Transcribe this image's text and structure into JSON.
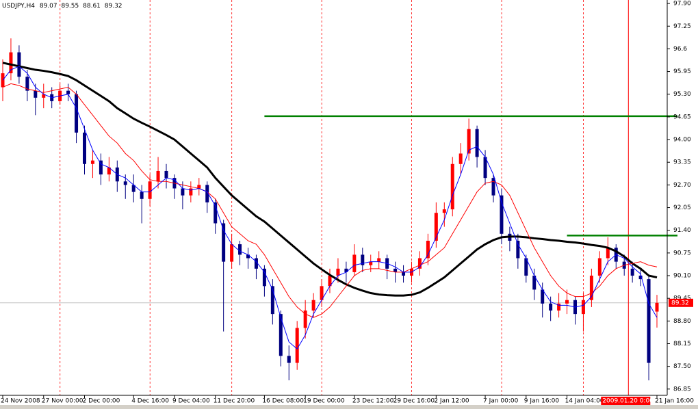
{
  "chart_data": {
    "type": "candlestick",
    "symbol": "USDJPY,H4",
    "bull_color": "#ff0000",
    "bear_color": "#000080",
    "categories": [
      "24 Nov 2008",
      null,
      null,
      null,
      null,
      "27 Nov 00:00",
      null,
      null,
      null,
      null,
      "2 Dec 00:00",
      null,
      null,
      null,
      null,
      null,
      "4 Dec 16:00",
      null,
      null,
      null,
      null,
      "9 Dec 04:00",
      null,
      null,
      null,
      null,
      "11 Dec 20:00",
      null,
      null,
      null,
      null,
      null,
      "16 Dec 08:00",
      null,
      null,
      null,
      null,
      "19 Dec 00:00",
      null,
      null,
      null,
      null,
      null,
      "23 Dec 12:00",
      null,
      null,
      null,
      null,
      "29 Dec 16:00",
      null,
      null,
      null,
      null,
      "2 Jan 12:00",
      null,
      null,
      null,
      null,
      null,
      "7 Jan 00:00",
      null,
      null,
      null,
      null,
      "9 Jan 16:00",
      null,
      null,
      null,
      null,
      "14 Jan 04:00",
      null,
      null,
      null,
      null,
      "2009.01.20 0:00",
      null,
      null,
      null,
      null,
      null,
      "21 Jan 16:00"
    ],
    "cursor_index": 74,
    "candles": [
      [
        95.5,
        96.3,
        95.1,
        95.9
      ],
      [
        95.9,
        96.9,
        95.7,
        96.5
      ],
      [
        96.5,
        96.7,
        95.6,
        95.8
      ],
      [
        95.8,
        96.0,
        95.1,
        95.4
      ],
      [
        95.4,
        95.6,
        94.7,
        95.2
      ],
      [
        95.2,
        95.6,
        94.9,
        95.3
      ],
      [
        95.3,
        95.5,
        94.9,
        95.1
      ],
      [
        95.1,
        95.6,
        95.0,
        95.4
      ],
      [
        95.4,
        95.6,
        95.1,
        95.3
      ],
      [
        95.3,
        95.4,
        93.9,
        94.2
      ],
      [
        94.2,
        94.4,
        93.0,
        93.3
      ],
      [
        93.3,
        93.7,
        92.9,
        93.4
      ],
      [
        93.4,
        93.6,
        92.7,
        93.0
      ],
      [
        93.0,
        93.5,
        92.8,
        93.2
      ],
      [
        93.2,
        93.4,
        92.5,
        92.8
      ],
      [
        92.8,
        93.0,
        92.3,
        92.7
      ],
      [
        92.7,
        93.0,
        92.2,
        92.5
      ],
      [
        92.5,
        92.7,
        91.6,
        92.3
      ],
      [
        92.3,
        93.0,
        92.1,
        92.8
      ],
      [
        92.8,
        93.5,
        92.6,
        93.1
      ],
      [
        93.1,
        93.3,
        92.6,
        92.9
      ],
      [
        92.9,
        93.0,
        92.3,
        92.6
      ],
      [
        92.6,
        92.8,
        92.0,
        92.4
      ],
      [
        92.4,
        92.8,
        92.2,
        92.6
      ],
      [
        92.6,
        92.9,
        92.4,
        92.7
      ],
      [
        92.7,
        92.8,
        91.9,
        92.2
      ],
      [
        92.2,
        92.3,
        91.3,
        91.6
      ],
      [
        91.6,
        91.7,
        88.5,
        90.5
      ],
      [
        90.5,
        91.3,
        90.3,
        91.0
      ],
      [
        91.0,
        91.1,
        90.4,
        90.7
      ],
      [
        90.7,
        90.9,
        90.3,
        90.6
      ],
      [
        90.6,
        90.7,
        90.0,
        90.3
      ],
      [
        90.3,
        90.4,
        89.5,
        89.8
      ],
      [
        89.8,
        90.0,
        88.7,
        89.0
      ],
      [
        89.0,
        89.1,
        87.5,
        87.8
      ],
      [
        87.8,
        88.1,
        87.1,
        87.6
      ],
      [
        87.6,
        88.8,
        87.4,
        88.6
      ],
      [
        88.6,
        89.4,
        88.3,
        89.1
      ],
      [
        89.1,
        89.6,
        88.9,
        89.4
      ],
      [
        89.4,
        90.0,
        89.2,
        89.8
      ],
      [
        89.8,
        90.3,
        89.6,
        90.1
      ],
      [
        90.1,
        90.6,
        89.9,
        90.3
      ],
      [
        90.3,
        90.5,
        89.9,
        90.2
      ],
      [
        90.2,
        91.0,
        90.1,
        90.7
      ],
      [
        90.7,
        90.9,
        90.2,
        90.4
      ],
      [
        90.4,
        90.7,
        90.2,
        90.5
      ],
      [
        90.5,
        90.8,
        90.3,
        90.6
      ],
      [
        90.6,
        90.7,
        90.0,
        90.3
      ],
      [
        90.3,
        90.5,
        89.9,
        90.2
      ],
      [
        90.2,
        90.4,
        89.9,
        90.1
      ],
      [
        90.1,
        90.5,
        89.9,
        90.3
      ],
      [
        90.3,
        90.8,
        90.1,
        90.6
      ],
      [
        90.6,
        91.3,
        90.4,
        91.1
      ],
      [
        91.1,
        92.2,
        90.9,
        91.9
      ],
      [
        91.9,
        92.2,
        91.5,
        92.0
      ],
      [
        92.0,
        93.5,
        91.8,
        93.3
      ],
      [
        93.3,
        93.9,
        93.0,
        93.6
      ],
      [
        93.6,
        94.6,
        93.4,
        94.3
      ],
      [
        94.3,
        94.4,
        93.2,
        93.5
      ],
      [
        93.5,
        93.7,
        92.7,
        92.9
      ],
      [
        92.9,
        93.0,
        92.2,
        92.4
      ],
      [
        92.4,
        92.6,
        91.0,
        91.3
      ],
      [
        91.3,
        91.5,
        90.8,
        91.1
      ],
      [
        91.1,
        91.3,
        90.3,
        90.6
      ],
      [
        90.6,
        90.7,
        89.9,
        90.1
      ],
      [
        90.1,
        90.3,
        89.4,
        89.7
      ],
      [
        89.7,
        89.9,
        88.9,
        89.3
      ],
      [
        89.3,
        89.5,
        88.8,
        89.1
      ],
      [
        89.1,
        89.6,
        88.9,
        89.3
      ],
      [
        89.3,
        89.7,
        89.0,
        89.4
      ],
      [
        89.4,
        89.5,
        88.7,
        89.0
      ],
      [
        89.0,
        89.6,
        88.5,
        89.4
      ],
      [
        89.4,
        90.3,
        89.2,
        90.1
      ],
      [
        90.1,
        90.8,
        89.9,
        90.6
      ],
      [
        90.6,
        91.2,
        90.4,
        90.9
      ],
      [
        90.9,
        91.0,
        90.3,
        90.5
      ],
      [
        90.5,
        90.7,
        90.1,
        90.3
      ],
      [
        90.3,
        90.5,
        89.9,
        90.1
      ],
      [
        90.1,
        90.3,
        89.8,
        90.0
      ],
      [
        90.0,
        90.1,
        87.1,
        87.6
      ],
      [
        89.07,
        89.55,
        88.61,
        89.32
      ]
    ],
    "series": [
      {
        "color": "#000000",
        "width": 3,
        "values": [
          96.2,
          96.15,
          96.1,
          96.05,
          96.0,
          95.97,
          95.93,
          95.88,
          95.82,
          95.7,
          95.55,
          95.4,
          95.25,
          95.1,
          94.9,
          94.75,
          94.6,
          94.48,
          94.37,
          94.25,
          94.13,
          94.0,
          93.8,
          93.6,
          93.4,
          93.2,
          92.9,
          92.65,
          92.4,
          92.2,
          92.0,
          91.8,
          91.65,
          91.45,
          91.25,
          91.05,
          90.85,
          90.65,
          90.45,
          90.28,
          90.12,
          89.98,
          89.85,
          89.75,
          89.67,
          89.6,
          89.56,
          89.54,
          89.53,
          89.53,
          89.55,
          89.62,
          89.75,
          89.9,
          90.05,
          90.25,
          90.45,
          90.65,
          90.85,
          91.0,
          91.12,
          91.2,
          91.22,
          91.22,
          91.2,
          91.17,
          91.15,
          91.12,
          91.1,
          91.07,
          91.05,
          91.02,
          90.98,
          90.95,
          90.9,
          90.8,
          90.65,
          90.45,
          90.3,
          90.1,
          90.05
        ]
      },
      {
        "color": "#ff0000",
        "width": 1,
        "values": [
          95.5,
          95.6,
          95.55,
          95.45,
          95.4,
          95.35,
          95.4,
          95.45,
          95.5,
          95.3,
          95.0,
          94.7,
          94.4,
          94.1,
          93.9,
          93.6,
          93.4,
          93.1,
          92.85,
          92.8,
          92.8,
          92.75,
          92.7,
          92.65,
          92.6,
          92.5,
          92.3,
          91.9,
          91.5,
          91.3,
          91.1,
          91.0,
          90.7,
          90.3,
          89.9,
          89.5,
          89.2,
          89.0,
          88.9,
          89.0,
          89.2,
          89.5,
          89.8,
          90.1,
          90.25,
          90.3,
          90.3,
          90.25,
          90.2,
          90.2,
          90.3,
          90.4,
          90.5,
          90.7,
          90.9,
          91.3,
          91.7,
          92.1,
          92.5,
          92.75,
          92.8,
          92.7,
          92.4,
          91.9,
          91.4,
          90.9,
          90.5,
          90.1,
          89.8,
          89.6,
          89.5,
          89.5,
          89.6,
          89.8,
          90.1,
          90.3,
          90.4,
          90.45,
          90.5,
          90.4,
          90.35
        ]
      },
      {
        "color": "#0000ff",
        "width": 1,
        "values": [
          95.7,
          96.0,
          96.1,
          95.9,
          95.5,
          95.3,
          95.2,
          95.25,
          95.3,
          94.9,
          94.3,
          93.7,
          93.3,
          93.2,
          93.0,
          92.9,
          92.7,
          92.5,
          92.5,
          92.7,
          92.9,
          92.85,
          92.6,
          92.55,
          92.6,
          92.5,
          92.1,
          91.4,
          91.0,
          90.8,
          90.7,
          90.5,
          90.2,
          89.7,
          88.9,
          88.2,
          88.0,
          88.4,
          89.0,
          89.4,
          89.8,
          90.1,
          90.2,
          90.4,
          90.45,
          90.5,
          90.5,
          90.45,
          90.35,
          90.2,
          90.2,
          90.35,
          90.7,
          91.2,
          91.7,
          92.4,
          93.0,
          93.7,
          93.8,
          93.5,
          93.0,
          92.2,
          91.6,
          91.0,
          90.6,
          90.1,
          89.7,
          89.35,
          89.25,
          89.25,
          89.2,
          89.25,
          89.5,
          90.0,
          90.5,
          90.7,
          90.6,
          90.35,
          90.15,
          89.3,
          88.9
        ]
      }
    ],
    "hlines": [
      {
        "value": 94.67,
        "start": 32,
        "color": "#008000"
      },
      {
        "value": 91.25,
        "start": 69,
        "color": "#008000"
      }
    ],
    "ylim": [
      86.67,
      98.0
    ],
    "yticks": [
      {
        "value": 97.9,
        "label": "97.90"
      },
      97.25,
      96.6,
      95.95,
      {
        "value": 95.3,
        "label": "95.30"
      },
      94.65,
      {
        "value": 94.0,
        "label": "94.00"
      },
      93.35,
      {
        "value": 92.7,
        "label": "92.70"
      },
      92.05,
      {
        "value": 91.4,
        "label": "91.40"
      },
      90.75,
      {
        "value": 90.1,
        "label": "90.10"
      },
      89.45,
      {
        "value": 88.8,
        "label": "88.80"
      },
      88.15,
      {
        "value": 87.5,
        "label": "87.50"
      },
      86.85
    ]
  }
}
